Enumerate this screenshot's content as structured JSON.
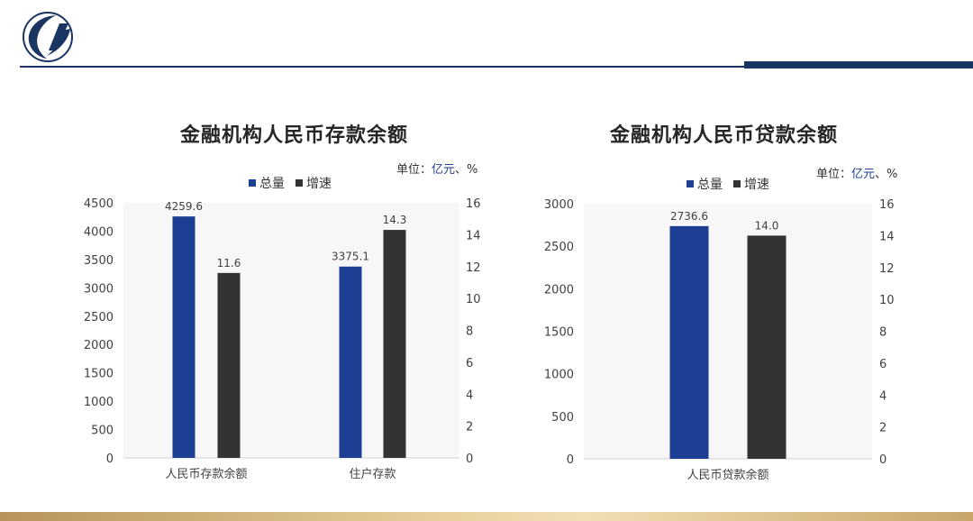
{
  "header": {
    "logo": "central-bank-logo"
  },
  "colors": {
    "total": "#1c3f94",
    "growth": "#333333",
    "brand": "#1b3563"
  },
  "chart_data": [
    {
      "type": "bar",
      "title": "金融机构人民币存款余额",
      "unit_prefix": "单位：",
      "unit_highlight": "亿元",
      "unit_suffix": "、%",
      "legend": [
        "总量",
        "增速"
      ],
      "categories": [
        "人民币存款余额",
        "住户存款"
      ],
      "series": [
        {
          "name": "总量",
          "axis": "left",
          "values": [
            4259.6,
            3375.1
          ],
          "labels": [
            "4259.6",
            "3375.1"
          ]
        },
        {
          "name": "增速",
          "axis": "right",
          "values": [
            11.6,
            14.3
          ],
          "labels": [
            "11.6",
            "14.3"
          ]
        }
      ],
      "left_axis": {
        "ylim": [
          0,
          4500
        ],
        "ticks": [
          "0",
          "500",
          "1000",
          "1500",
          "2000",
          "2500",
          "3000",
          "3500",
          "4000",
          "4500"
        ]
      },
      "right_axis": {
        "ylim": [
          0,
          16
        ],
        "ticks": [
          "0",
          "2",
          "4",
          "6",
          "8",
          "10",
          "12",
          "14",
          "16"
        ]
      },
      "legend_position": "top-center",
      "grid": false
    },
    {
      "type": "bar",
      "title": "金融机构人民币贷款余额",
      "unit_prefix": "单位：",
      "unit_highlight": "亿元",
      "unit_suffix": "、%",
      "legend": [
        "总量",
        "增速"
      ],
      "categories": [
        "人民币贷款余额"
      ],
      "series": [
        {
          "name": "总量",
          "axis": "left",
          "values": [
            2736.6
          ],
          "labels": [
            "2736.6"
          ]
        },
        {
          "name": "增速",
          "axis": "right",
          "values": [
            14.0
          ],
          "labels": [
            "14.0"
          ]
        }
      ],
      "left_axis": {
        "ylim": [
          0,
          3000
        ],
        "ticks": [
          "0",
          "500",
          "1000",
          "1500",
          "2000",
          "2500",
          "3000"
        ]
      },
      "right_axis": {
        "ylim": [
          0,
          16
        ],
        "ticks": [
          "0",
          "2",
          "4",
          "6",
          "8",
          "10",
          "12",
          "14",
          "16"
        ]
      },
      "legend_position": "top-center",
      "grid": false
    }
  ]
}
